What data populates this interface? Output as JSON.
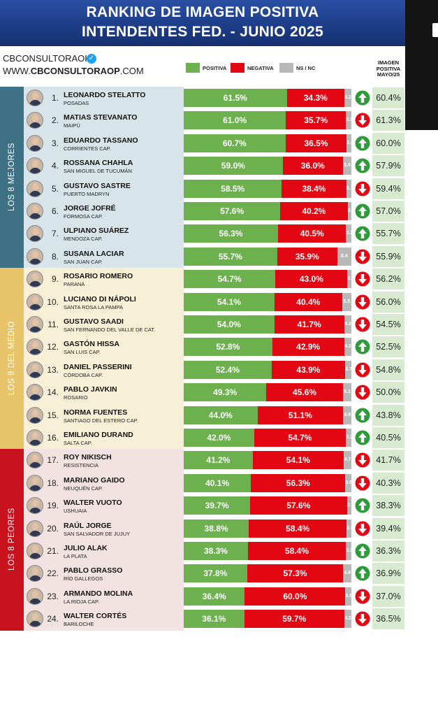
{
  "header": {
    "title_line1": "RANKING DE IMAGEN POSITIVA",
    "title_line2": "INTENDENTES FED. - JUNIO 2025",
    "brand_handle": "CBCONSULTORAOK",
    "brand_site_prefix": "WWW.",
    "brand_site_bold": "CBCONSULTORAOP",
    "brand_site_suffix": ".COM",
    "legend": [
      {
        "label": "POSITIVA",
        "color": "#6db14f"
      },
      {
        "label": "NEGATIVA",
        "color": "#e30613"
      },
      {
        "label": "NS / NC",
        "color": "#b8b8b8"
      }
    ],
    "prev_header_line1": "IMAGEN",
    "prev_header_line2": "POSITIVA",
    "prev_header_line3": "MAYO/25"
  },
  "sections": [
    {
      "label": "LOS 8 MEJORES",
      "color": "#3e7186",
      "bg": "#d7e4ea"
    },
    {
      "label": "LOS 8 DEL MEDIO",
      "color": "#e8c56a",
      "bg": "#f7f0d6"
    },
    {
      "label": "LOS 8 PEORES",
      "color": "#c8121d",
      "bg": "#f2e2e2"
    }
  ],
  "chart_data": {
    "type": "bar",
    "title": "RANKING DE IMAGEN POSITIVA INTENDENTES FED. - JUNIO 2025",
    "series_names": [
      "POSITIVA",
      "NEGATIVA",
      "NS / NC"
    ],
    "rows": [
      {
        "rank": "1.",
        "name": "LEONARDO STELATTO",
        "city": "POSADAS",
        "pos": 61.5,
        "neg": 34.3,
        "ns": 4.2,
        "trend": "up",
        "prev": 60.4
      },
      {
        "rank": "2.",
        "name": "MATIAS STEVANATO",
        "city": "MAIPÚ",
        "pos": 61.0,
        "neg": 35.7,
        "ns": 3.3,
        "trend": "down",
        "prev": 61.3
      },
      {
        "rank": "3.",
        "name": "EDUARDO TASSANO",
        "city": "CORRIENTES  CAP.",
        "pos": 60.7,
        "neg": 36.5,
        "ns": 2.8,
        "trend": "up",
        "prev": 60.0
      },
      {
        "rank": "4.",
        "name": "ROSSANA CHAHLA",
        "city": "SAN MIGUEL DE TUCUMÁN",
        "pos": 59.0,
        "neg": 36.0,
        "ns": 5.0,
        "trend": "up",
        "prev": 57.9
      },
      {
        "rank": "5.",
        "name": "GUSTAVO SASTRE",
        "city": "PUERTO MADRYN",
        "pos": 58.5,
        "neg": 38.4,
        "ns": 3.1,
        "trend": "down",
        "prev": 59.4
      },
      {
        "rank": "6.",
        "name": "JORGE JOFRÉ",
        "city": "FORMOSA CAP.",
        "pos": 57.6,
        "neg": 40.2,
        "ns": 2.2,
        "trend": "up",
        "prev": 57.0
      },
      {
        "rank": "7.",
        "name": "ULPIANO SUÁREZ",
        "city": "MENDOZA CAP.",
        "pos": 56.3,
        "neg": 40.5,
        "ns": 3.2,
        "trend": "up",
        "prev": 55.7
      },
      {
        "rank": "8.",
        "name": "SUSANA LACIAR",
        "city": "SAN JUAN CAP.",
        "pos": 55.7,
        "neg": 35.9,
        "ns": 8.4,
        "trend": "down",
        "prev": 55.9
      },
      {
        "rank": "9.",
        "name": "ROSARIO ROMERO",
        "city": "PARANÁ",
        "pos": 54.7,
        "neg": 43.0,
        "ns": 2.3,
        "trend": "down",
        "prev": 56.2
      },
      {
        "rank": "10.",
        "name": "LUCIANO DI NÁPOLI",
        "city": "SANTA ROSA LA PAMPA",
        "pos": 54.1,
        "neg": 40.4,
        "ns": 5.5,
        "trend": "down",
        "prev": 56.0
      },
      {
        "rank": "11.",
        "name": "GUSTAVO SAADI",
        "city": "SAN FERNANDO DEL VALLE DE CAT.",
        "pos": 54.0,
        "neg": 41.7,
        "ns": 4.3,
        "trend": "down",
        "prev": 54.5
      },
      {
        "rank": "12.",
        "name": "GASTÓN HISSA",
        "city": "SAN LUIS CAP.",
        "pos": 52.8,
        "neg": 42.9,
        "ns": 4.3,
        "trend": "up",
        "prev": 52.5
      },
      {
        "rank": "13.",
        "name": "DANIEL PASSERINI",
        "city": "CÓRDOBA CAP.",
        "pos": 52.4,
        "neg": 43.9,
        "ns": 3.7,
        "trend": "down",
        "prev": 54.8
      },
      {
        "rank": "14.",
        "name": "PABLO JAVKIN",
        "city": "ROSARIO",
        "pos": 49.3,
        "neg": 45.6,
        "ns": 5.1,
        "trend": "down",
        "prev": 50.0
      },
      {
        "rank": "15.",
        "name": "NORMA FUENTES",
        "city": "SANTIAGO DEL ESTERO CAP.",
        "pos": 44.0,
        "neg": 51.1,
        "ns": 4.9,
        "trend": "up",
        "prev": 43.8
      },
      {
        "rank": "16.",
        "name": "EMILIANO DURAND",
        "city": "SALTA CAP.",
        "pos": 42.0,
        "neg": 54.7,
        "ns": 3.3,
        "trend": "up",
        "prev": 40.5
      },
      {
        "rank": "17.",
        "name": "ROY NIKISCH",
        "city": "RESISTENCIA",
        "pos": 41.2,
        "neg": 54.1,
        "ns": 4.7,
        "trend": "down",
        "prev": 41.7
      },
      {
        "rank": "18.",
        "name": "MARIANO GAIDO",
        "city": "NEUQUÉN CAP.",
        "pos": 40.1,
        "neg": 56.3,
        "ns": 3.6,
        "trend": "down",
        "prev": 40.3
      },
      {
        "rank": "19.",
        "name": "WALTER VUOTO",
        "city": "USHUAIA",
        "pos": 39.7,
        "neg": 57.6,
        "ns": 2.7,
        "trend": "up",
        "prev": 38.3
      },
      {
        "rank": "20.",
        "name": "RAÚL JORGE",
        "city": "SAN SALVADOR DE JUJUY",
        "pos": 38.8,
        "neg": 58.4,
        "ns": 2.8,
        "trend": "down",
        "prev": 39.4
      },
      {
        "rank": "21.",
        "name": "JULIO ALAK",
        "city": "LA PLATA",
        "pos": 38.3,
        "neg": 58.4,
        "ns": 3.3,
        "trend": "up",
        "prev": 36.3
      },
      {
        "rank": "22.",
        "name": "PABLO GRASSO",
        "city": "RÍO GALLEGOS",
        "pos": 37.8,
        "neg": 57.3,
        "ns": 4.9,
        "trend": "up",
        "prev": 36.9
      },
      {
        "rank": "23.",
        "name": "ARMANDO MOLINA",
        "city": "LA RIOJA CAP.",
        "pos": 36.4,
        "neg": 60.0,
        "ns": 3.6,
        "trend": "down",
        "prev": 37.0
      },
      {
        "rank": "24.",
        "name": "WALTER CORTÉS",
        "city": "BARILOCHE",
        "pos": 36.1,
        "neg": 59.7,
        "ns": 4.2,
        "trend": "down",
        "prev": 36.5
      }
    ]
  }
}
